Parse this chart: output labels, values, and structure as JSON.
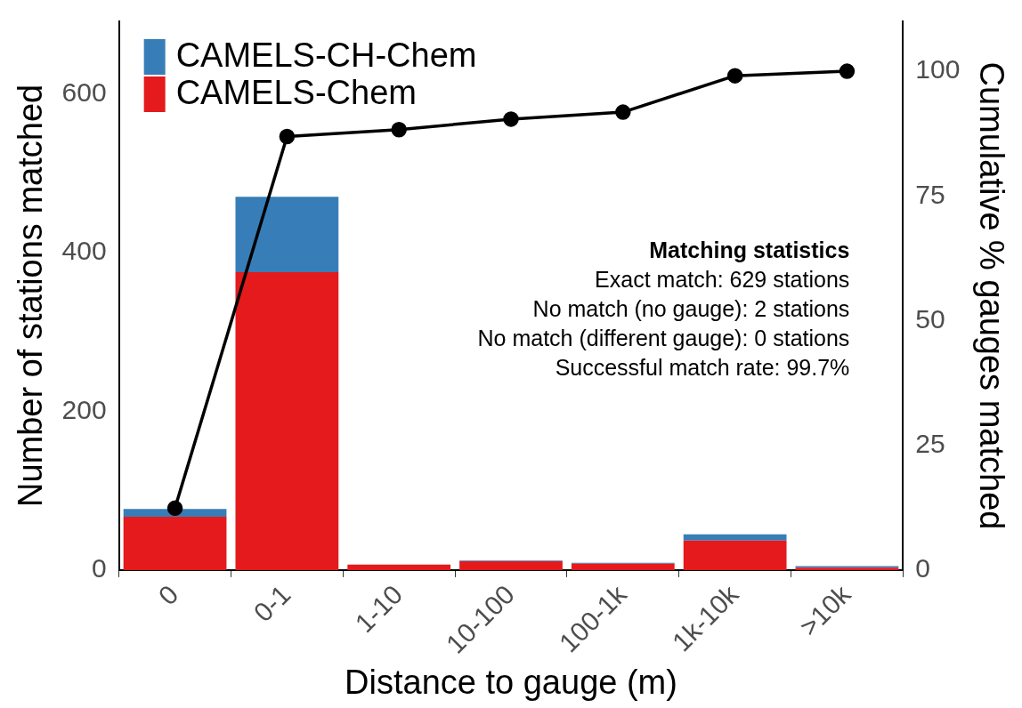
{
  "chart_data": {
    "type": "bar",
    "stacked": true,
    "xlabel": "Distance to gauge (m)",
    "ylabel": "Number of stations matched",
    "y2label": "Cumulative % gauges matched",
    "categories": [
      "0",
      "0-1",
      "1-10",
      "10-100",
      "100-1k",
      "1k-10k",
      ">10k"
    ],
    "series": [
      {
        "name": "CAMELS-Chem",
        "color": "#e41a1c",
        "values": [
          67,
          375,
          7,
          11,
          8,
          37,
          3
        ]
      },
      {
        "name": "CAMELS-CH-Chem",
        "color": "#377eb8",
        "values": [
          10,
          95,
          0,
          1,
          1,
          8,
          2
        ]
      },
      {
        "type": "line",
        "axis": "y2",
        "color": "#000000",
        "marker": "circle",
        "values": [
          12.4,
          86.9,
          88.3,
          90.4,
          91.8,
          99.1,
          100
        ]
      }
    ],
    "ylim": [
      0,
      691
    ],
    "yticks": [
      0,
      200,
      400,
      600
    ],
    "y2lim": [
      0,
      110
    ],
    "y2ticks": [
      0,
      25,
      50,
      75,
      100
    ],
    "legend": "top left",
    "grid": false,
    "annotations": [
      "Matching statistics",
      "Exact match: 629 stations",
      "No match (no gauge): 2 stations",
      "No match (different gauge): 0 stations",
      "Successful match rate: 99.7%"
    ]
  }
}
